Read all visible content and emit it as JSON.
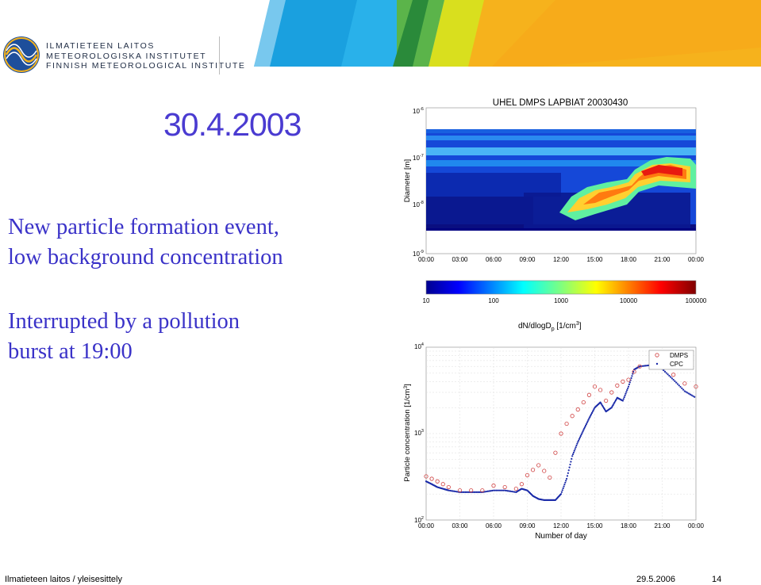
{
  "institute": {
    "line1": "ILMATIETEEN LAITOS",
    "line2": "METEOROLOGISKA INSTITUTET",
    "line3": "FINNISH METEOROLOGICAL INSTITUTE"
  },
  "slide": {
    "date_heading": "30.4.2003",
    "text1_line1": "New particle formation event,",
    "text1_line2": "low background concentration",
    "text2_line1": "Interrupted by a pollution",
    "text2_line2": "burst at 19:00"
  },
  "footer": {
    "left": "Ilmatieteen laitos / yleisesittely",
    "date": "29.5.2006",
    "page": "14"
  },
  "colors": {
    "heading_blue": "#4a3bd1",
    "text_blue": "#3a32c8",
    "dmps": "#d04040",
    "cpc": "#1a2aa8"
  },
  "chart_data": [
    {
      "type": "heatmap",
      "title": "UHEL DMPS LAPBIAT 20030430",
      "ylabel": "Diameter [m]",
      "y_ticks": [
        "10-6",
        "10-7",
        "10-8",
        "10-9"
      ],
      "x_ticks": [
        "00:00",
        "03:00",
        "06:00",
        "09:00",
        "12:00",
        "15:00",
        "18:00",
        "21:00",
        "00:00"
      ],
      "colorbar_ticks": [
        "10",
        "100",
        "1000",
        "10000",
        "100000"
      ],
      "colorbar_label": "dN/dlogDp [1/cm3]"
    },
    {
      "type": "scatter",
      "xlabel": "Number of day",
      "ylabel": "Particle concentration [1/cm3]",
      "y_ticks": [
        "10^4",
        "10^3",
        "10^2"
      ],
      "ylim": [
        100,
        10000
      ],
      "x_ticks": [
        "00:00",
        "03:00",
        "06:00",
        "09:00",
        "12:00",
        "15:00",
        "18:00",
        "21:00",
        "00:00"
      ],
      "legend": [
        "DMPS",
        "CPC"
      ],
      "legend_position": "top-right",
      "series": [
        {
          "name": "DMPS",
          "x": [
            0,
            0.5,
            1,
            1.5,
            2,
            3,
            4,
            5,
            6,
            7,
            8,
            8.5,
            9,
            9.5,
            10,
            10.5,
            11,
            11.5,
            12,
            12.5,
            13,
            13.5,
            14,
            14.5,
            15,
            15.5,
            16,
            16.5,
            17,
            17.5,
            18,
            18.5,
            19,
            20,
            21,
            22,
            23,
            24
          ],
          "y": [
            320,
            300,
            280,
            260,
            240,
            220,
            220,
            220,
            250,
            240,
            230,
            260,
            330,
            380,
            430,
            370,
            310,
            600,
            1000,
            1300,
            1600,
            1900,
            2300,
            2800,
            3500,
            3200,
            2400,
            3000,
            3600,
            4000,
            4200,
            5200,
            6000,
            6400,
            6200,
            4800,
            3800,
            3500
          ]
        },
        {
          "name": "CPC",
          "x": [
            0,
            0.5,
            1,
            1.5,
            2,
            3,
            4,
            5,
            6,
            7,
            8,
            8.5,
            9,
            9.5,
            10,
            10.5,
            11,
            11.5,
            12,
            12.5,
            13,
            13.5,
            14,
            14.5,
            15,
            15.5,
            16,
            16.5,
            17,
            17.5,
            18,
            18.5,
            19,
            20,
            21,
            22,
            23,
            24
          ],
          "y": [
            280,
            260,
            240,
            230,
            220,
            210,
            210,
            210,
            220,
            220,
            210,
            230,
            220,
            190,
            175,
            170,
            170,
            170,
            200,
            300,
            550,
            800,
            1100,
            1500,
            2000,
            2300,
            1800,
            2000,
            2600,
            2400,
            3500,
            5500,
            6000,
            6200,
            5600,
            4200,
            3100,
            2600
          ]
        }
      ]
    }
  ]
}
